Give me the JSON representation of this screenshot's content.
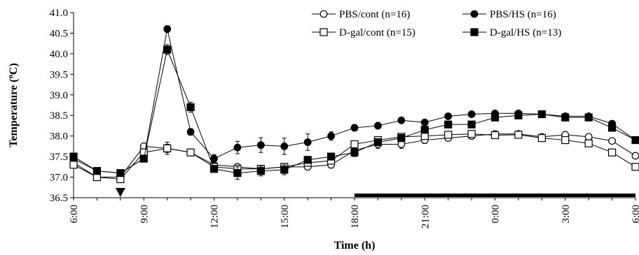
{
  "chart_data": {
    "type": "line",
    "title": "",
    "xlabel": "Time (h)",
    "ylabel": "Temperature (°C)",
    "ylabel_parts": {
      "before": "Temperature (",
      "sup": "o",
      "after": "C)"
    },
    "ylim": [
      36.5,
      41.0
    ],
    "yticks": [
      "36.5",
      "37.0",
      "37.5",
      "38.0",
      "38.5",
      "39.0",
      "39.5",
      "40.0",
      "40.5",
      "41.0"
    ],
    "x_hours": [
      6,
      7,
      8,
      9,
      10,
      11,
      12,
      13,
      14,
      15,
      16,
      17,
      18,
      19,
      20,
      21,
      22,
      23,
      24,
      25,
      26,
      27,
      28,
      29,
      30
    ],
    "xticks": [
      {
        "hour": 6,
        "label": "6:00"
      },
      {
        "hour": 9,
        "label": "9:00"
      },
      {
        "hour": 12,
        "label": "12:00"
      },
      {
        "hour": 15,
        "label": "15:00"
      },
      {
        "hour": 18,
        "label": "18:00"
      },
      {
        "hour": 21,
        "label": "21:00"
      },
      {
        "hour": 24,
        "label": "0:00"
      },
      {
        "hour": 27,
        "label": "3:00"
      },
      {
        "hour": 30,
        "label": "6:00"
      }
    ],
    "grid": false,
    "legend_position": "top-right",
    "injection_marker_hour": 8,
    "dark_period": [
      18,
      30
    ],
    "series": [
      {
        "name": "PBS/cont (n=16)",
        "marker": "open-circle",
        "values": [
          37.35,
          37.0,
          37.0,
          37.75,
          37.7,
          37.6,
          37.3,
          37.25,
          37.2,
          37.25,
          37.25,
          37.3,
          37.65,
          37.8,
          37.8,
          37.9,
          37.95,
          38.0,
          38.05,
          38.05,
          37.98,
          38.03,
          37.98,
          37.88,
          37.52
        ],
        "errors": [
          0.05,
          0.05,
          0.05,
          0.06,
          0.1,
          0.08,
          0.06,
          0.06,
          0.08,
          0.08,
          0.06,
          0.08,
          0.08,
          0.1,
          0.1,
          0.08,
          0.06,
          0.06,
          0.05,
          0.05,
          0.05,
          0.05,
          0.05,
          0.06,
          0.06
        ]
      },
      {
        "name": "PBS/HS (n=16)",
        "marker": "filled-circle",
        "values": [
          37.45,
          37.15,
          37.1,
          37.45,
          40.6,
          38.1,
          37.45,
          37.72,
          37.78,
          37.75,
          37.85,
          38.0,
          38.2,
          38.25,
          38.38,
          38.33,
          38.48,
          38.53,
          38.55,
          38.55,
          38.53,
          38.48,
          38.48,
          38.3,
          37.9
        ],
        "errors": [
          0.05,
          0.05,
          0.05,
          0.06,
          0.08,
          0.08,
          0.1,
          0.15,
          0.18,
          0.2,
          0.2,
          0.1,
          0.08,
          0.08,
          0.06,
          0.06,
          0.06,
          0.06,
          0.06,
          0.06,
          0.06,
          0.06,
          0.06,
          0.06,
          0.06
        ]
      },
      {
        "name": "D-gal/cont (n=15)",
        "marker": "open-square",
        "values": [
          37.3,
          37.0,
          36.95,
          37.6,
          37.7,
          37.6,
          37.25,
          37.2,
          37.2,
          37.25,
          37.35,
          37.4,
          37.8,
          37.9,
          37.98,
          38.0,
          38.03,
          38.05,
          38.02,
          38.03,
          37.95,
          37.9,
          37.82,
          37.6,
          37.25
        ],
        "errors": [
          0.05,
          0.05,
          0.05,
          0.06,
          0.15,
          0.08,
          0.06,
          0.06,
          0.08,
          0.08,
          0.06,
          0.08,
          0.08,
          0.08,
          0.08,
          0.08,
          0.06,
          0.06,
          0.05,
          0.05,
          0.05,
          0.05,
          0.05,
          0.06,
          0.06
        ]
      },
      {
        "name": "D-gal/HS (n=13)",
        "marker": "filled-square",
        "values": [
          37.5,
          37.15,
          37.1,
          37.45,
          40.1,
          38.7,
          37.2,
          37.1,
          37.15,
          37.18,
          37.42,
          37.5,
          37.6,
          37.85,
          37.95,
          38.15,
          38.28,
          38.28,
          38.45,
          38.5,
          38.53,
          38.45,
          38.45,
          38.2,
          37.9
        ],
        "errors": [
          0.05,
          0.05,
          0.05,
          0.06,
          0.12,
          0.12,
          0.06,
          0.15,
          0.12,
          0.12,
          0.08,
          0.08,
          0.1,
          0.08,
          0.08,
          0.08,
          0.06,
          0.06,
          0.06,
          0.06,
          0.06,
          0.06,
          0.06,
          0.06,
          0.06
        ]
      }
    ]
  }
}
